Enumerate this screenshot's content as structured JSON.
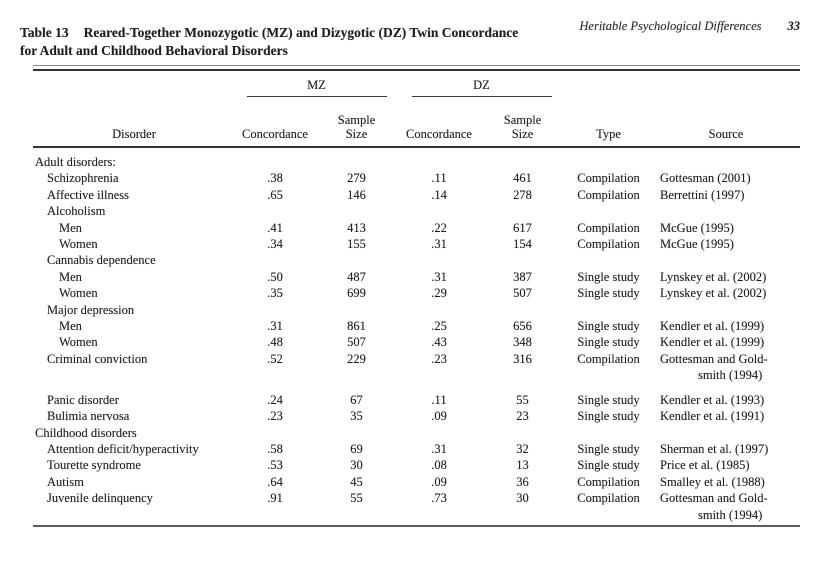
{
  "page": {
    "running_head": "Heritable Psychological Differences",
    "page_number": "33"
  },
  "table": {
    "label": "Table 13",
    "title_line1": "Reared-Together Monozygotic (MZ) and Dizygotic (DZ) Twin Concordance",
    "title_line2": "for Adult and Childhood Behavioral Disorders",
    "column_groups": {
      "mz": "MZ",
      "dz": "DZ"
    },
    "headers": {
      "disorder": "Disorder",
      "concordance": "Concordance",
      "sample_line1": "Sample",
      "sample_line2": "Size",
      "type": "Type",
      "source": "Source"
    },
    "rows": [
      {
        "disorder": "Adult disorders:"
      },
      {
        "disorder": "Schizophrenia",
        "mz_concordance": ".38",
        "mz_sample": "279",
        "dz_concordance": ".11",
        "dz_sample": "461",
        "type": "Compilation",
        "source": "Gottesman (2001)"
      },
      {
        "disorder": "Affective illness",
        "mz_concordance": ".65",
        "mz_sample": "146",
        "dz_concordance": ".14",
        "dz_sample": "278",
        "type": "Compilation",
        "source": "Berrettini (1997)"
      },
      {
        "disorder": "Alcoholism"
      },
      {
        "disorder": "Men",
        "mz_concordance": ".41",
        "mz_sample": "413",
        "dz_concordance": ".22",
        "dz_sample": "617",
        "type": "Compilation",
        "source": "McGue (1995)"
      },
      {
        "disorder": "Women",
        "mz_concordance": ".34",
        "mz_sample": "155",
        "dz_concordance": ".31",
        "dz_sample": "154",
        "type": "Compilation",
        "source": "McGue (1995)"
      },
      {
        "disorder": "Cannabis dependence"
      },
      {
        "disorder": "Men",
        "mz_concordance": ".50",
        "mz_sample": "487",
        "dz_concordance": ".31",
        "dz_sample": "387",
        "type": "Single study",
        "source": "Lynskey et al. (2002)"
      },
      {
        "disorder": "Women",
        "mz_concordance": ".35",
        "mz_sample": "699",
        "dz_concordance": ".29",
        "dz_sample": "507",
        "type": "Single study",
        "source": "Lynskey et al. (2002)"
      },
      {
        "disorder": "Major depression"
      },
      {
        "disorder": "Men",
        "mz_concordance": ".31",
        "mz_sample": "861",
        "dz_concordance": ".25",
        "dz_sample": "656",
        "type": "Single study",
        "source": "Kendler et al. (1999)"
      },
      {
        "disorder": "Women",
        "mz_concordance": ".48",
        "mz_sample": "507",
        "dz_concordance": ".43",
        "dz_sample": "348",
        "type": "Single study",
        "source": "Kendler et al. (1999)"
      },
      {
        "disorder": "Criminal conviction",
        "mz_concordance": ".52",
        "mz_sample": "229",
        "dz_concordance": ".23",
        "dz_sample": "316",
        "type": "Compilation",
        "source": "Gottesman and Gold-",
        "source_line2": "smith (1994)"
      },
      {
        "disorder": "Panic disorder",
        "mz_concordance": ".24",
        "mz_sample": "67",
        "dz_concordance": ".11",
        "dz_sample": "55",
        "type": "Single study",
        "source": "Kendler et al. (1993)"
      },
      {
        "disorder": "Bulimia nervosa",
        "mz_concordance": ".23",
        "mz_sample": "35",
        "dz_concordance": ".09",
        "dz_sample": "23",
        "type": "Single study",
        "source": "Kendler et al. (1991)"
      },
      {
        "disorder": "Childhood disorders"
      },
      {
        "disorder": "Attention deficit/hyperactivity",
        "mz_concordance": ".58",
        "mz_sample": "69",
        "dz_concordance": ".31",
        "dz_sample": "32",
        "type": "Single study",
        "source": "Sherman et al. (1997)"
      },
      {
        "disorder": "Tourette syndrome",
        "mz_concordance": ".53",
        "mz_sample": "30",
        "dz_concordance": ".08",
        "dz_sample": "13",
        "type": "Single study",
        "source": "Price et al. (1985)"
      },
      {
        "disorder": "Autism",
        "mz_concordance": ".64",
        "mz_sample": "45",
        "dz_concordance": ".09",
        "dz_sample": "36",
        "type": "Compilation",
        "source": "Smalley et al. (1988)"
      },
      {
        "disorder": "Juvenile delinquency",
        "mz_concordance": ".91",
        "mz_sample": "55",
        "dz_concordance": ".73",
        "dz_sample": "30",
        "type": "Compilation",
        "source": "Gottesman and Gold-",
        "source_line2": "smith (1994)"
      }
    ]
  }
}
